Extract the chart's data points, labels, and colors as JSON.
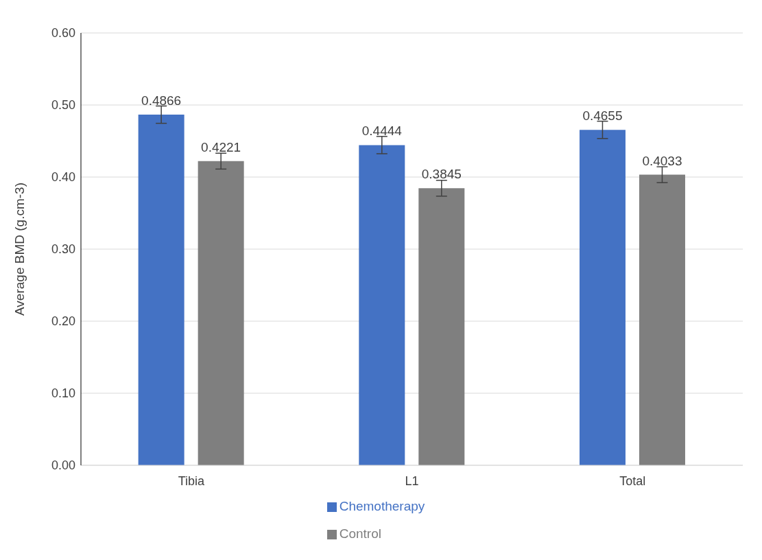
{
  "chart_data": {
    "type": "bar",
    "ylabel": "Average BMD (g.cm-3)",
    "categories": [
      "Tibia",
      "L1",
      "Total"
    ],
    "series": [
      {
        "name": "Chemotherapy",
        "color": "#4472c4",
        "values": [
          0.4866,
          0.4444,
          0.4655
        ],
        "errors": [
          0.012,
          0.012,
          0.012
        ]
      },
      {
        "name": "Control",
        "color": "#7f7f7f",
        "values": [
          0.4221,
          0.3845,
          0.4033
        ],
        "errors": [
          0.011,
          0.011,
          0.011
        ]
      }
    ],
    "ylim": [
      0,
      0.6
    ],
    "yticks": [
      {
        "value": 0,
        "label": "0.00"
      },
      {
        "value": 0.1,
        "label": "0.10"
      },
      {
        "value": 0.2,
        "label": "0.20"
      },
      {
        "value": 0.3,
        "label": "0.30"
      },
      {
        "value": 0.4,
        "label": "0.40"
      },
      {
        "value": 0.5,
        "label": "0.50"
      },
      {
        "value": 0.6,
        "label": "0.60"
      }
    ],
    "grid": "y",
    "legend": "bottom",
    "data_labels": true
  }
}
